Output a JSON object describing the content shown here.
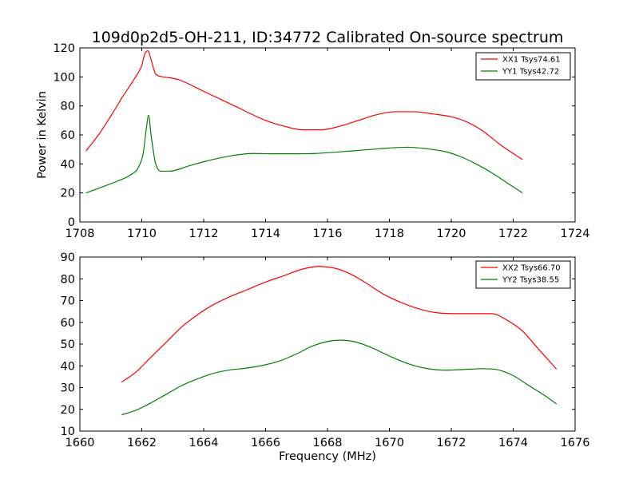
{
  "figure": {
    "title": "109d0p2d5-OH-211, ID:34772 Calibrated On-source spectrum"
  },
  "colors": {
    "xx": "#ff0000",
    "yy": "#008000",
    "axes": "#000000",
    "background": "#ffffff"
  },
  "chart_data": [
    {
      "type": "line",
      "xlabel": "",
      "ylabel": "Power in Kelvin",
      "xlim": [
        1708,
        1724
      ],
      "ylim": [
        0,
        120
      ],
      "xticks": [
        1708,
        1710,
        1712,
        1714,
        1716,
        1718,
        1720,
        1722,
        1724
      ],
      "yticks": [
        0,
        20,
        40,
        60,
        80,
        100,
        120
      ],
      "grid": false,
      "legend_position": "top-right",
      "series": [
        {
          "name": "XX1 Tsys74.61",
          "color": "#ff0000",
          "points": [
            [
              1708.2,
              49
            ],
            [
              1708.6,
              60
            ],
            [
              1709.0,
              73
            ],
            [
              1709.4,
              87
            ],
            [
              1709.8,
              100
            ],
            [
              1710.0,
              108
            ],
            [
              1710.1,
              116
            ],
            [
              1710.2,
              118
            ],
            [
              1710.3,
              112
            ],
            [
              1710.45,
              102
            ],
            [
              1710.7,
              100
            ],
            [
              1711.2,
              98
            ],
            [
              1712.0,
              90
            ],
            [
              1713.0,
              80
            ],
            [
              1714.0,
              70
            ],
            [
              1714.6,
              66
            ],
            [
              1715.2,
              63.5
            ],
            [
              1715.8,
              63.5
            ],
            [
              1716.4,
              66
            ],
            [
              1717.0,
              70
            ],
            [
              1717.6,
              74
            ],
            [
              1718.2,
              76
            ],
            [
              1718.8,
              76
            ],
            [
              1719.4,
              74.5
            ],
            [
              1720.0,
              72.5
            ],
            [
              1720.5,
              69
            ],
            [
              1721.0,
              63
            ],
            [
              1721.6,
              53
            ],
            [
              1722.3,
              43
            ]
          ]
        },
        {
          "name": "YY1 Tsys42.72",
          "color": "#008000",
          "points": [
            [
              1708.2,
              20
            ],
            [
              1708.7,
              24
            ],
            [
              1709.2,
              28
            ],
            [
              1709.6,
              32
            ],
            [
              1709.9,
              38
            ],
            [
              1710.05,
              48
            ],
            [
              1710.15,
              65
            ],
            [
              1710.22,
              73.5
            ],
            [
              1710.3,
              60
            ],
            [
              1710.45,
              40
            ],
            [
              1710.65,
              35
            ],
            [
              1710.9,
              35
            ],
            [
              1711.5,
              38.5
            ],
            [
              1712.0,
              41.5
            ],
            [
              1712.5,
              44
            ],
            [
              1713.0,
              46
            ],
            [
              1713.6,
              47.2
            ],
            [
              1714.2,
              47
            ],
            [
              1715.0,
              47
            ],
            [
              1715.6,
              47.2
            ],
            [
              1716.2,
              48
            ],
            [
              1716.8,
              49
            ],
            [
              1717.4,
              50
            ],
            [
              1718.0,
              51
            ],
            [
              1718.6,
              51.5
            ],
            [
              1719.2,
              50.5
            ],
            [
              1719.8,
              48.5
            ],
            [
              1720.3,
              45
            ],
            [
              1720.8,
              40
            ],
            [
              1721.3,
              34
            ],
            [
              1721.8,
              27
            ],
            [
              1722.3,
              20
            ]
          ]
        }
      ]
    },
    {
      "type": "line",
      "xlabel": "Frequency (MHz)",
      "ylabel": "",
      "xlim": [
        1660,
        1676
      ],
      "ylim": [
        10,
        90
      ],
      "xticks": [
        1660,
        1662,
        1664,
        1666,
        1668,
        1670,
        1672,
        1674,
        1676
      ],
      "yticks": [
        10,
        20,
        30,
        40,
        50,
        60,
        70,
        80,
        90
      ],
      "grid": false,
      "legend_position": "top-right",
      "series": [
        {
          "name": "XX2 Tsys66.70",
          "color": "#ff0000",
          "points": [
            [
              1661.35,
              32.5
            ],
            [
              1661.8,
              37
            ],
            [
              1662.3,
              44
            ],
            [
              1662.8,
              51
            ],
            [
              1663.3,
              58
            ],
            [
              1663.8,
              63.5
            ],
            [
              1664.3,
              68
            ],
            [
              1664.8,
              71.5
            ],
            [
              1665.4,
              75
            ],
            [
              1666.0,
              78.5
            ],
            [
              1666.6,
              81.5
            ],
            [
              1667.2,
              84.5
            ],
            [
              1667.7,
              85.7
            ],
            [
              1668.2,
              85
            ],
            [
              1668.7,
              82.5
            ],
            [
              1669.2,
              78.5
            ],
            [
              1669.8,
              73
            ],
            [
              1670.4,
              69
            ],
            [
              1671.0,
              66
            ],
            [
              1671.6,
              64.3
            ],
            [
              1672.2,
              64
            ],
            [
              1672.8,
              64
            ],
            [
              1673.3,
              64
            ],
            [
              1673.8,
              61
            ],
            [
              1674.3,
              56
            ],
            [
              1674.8,
              48
            ],
            [
              1675.4,
              38.5
            ]
          ]
        },
        {
          "name": "YY2 Tsys38.55",
          "color": "#008000",
          "points": [
            [
              1661.35,
              17.5
            ],
            [
              1661.8,
              19.5
            ],
            [
              1662.3,
              23
            ],
            [
              1662.8,
              27
            ],
            [
              1663.3,
              31
            ],
            [
              1663.8,
              34
            ],
            [
              1664.3,
              36.5
            ],
            [
              1664.8,
              38
            ],
            [
              1665.4,
              39
            ],
            [
              1666.0,
              40.5
            ],
            [
              1666.5,
              42.5
            ],
            [
              1667.0,
              45.5
            ],
            [
              1667.5,
              49
            ],
            [
              1668.0,
              51.2
            ],
            [
              1668.4,
              51.8
            ],
            [
              1668.9,
              51
            ],
            [
              1669.4,
              48.5
            ],
            [
              1670.0,
              44.5
            ],
            [
              1670.6,
              41
            ],
            [
              1671.2,
              38.8
            ],
            [
              1671.8,
              38
            ],
            [
              1672.4,
              38.3
            ],
            [
              1673.0,
              38.7
            ],
            [
              1673.5,
              38.2
            ],
            [
              1674.0,
              35.5
            ],
            [
              1674.5,
              31
            ],
            [
              1675.0,
              26.5
            ],
            [
              1675.4,
              22.5
            ]
          ]
        }
      ]
    }
  ]
}
